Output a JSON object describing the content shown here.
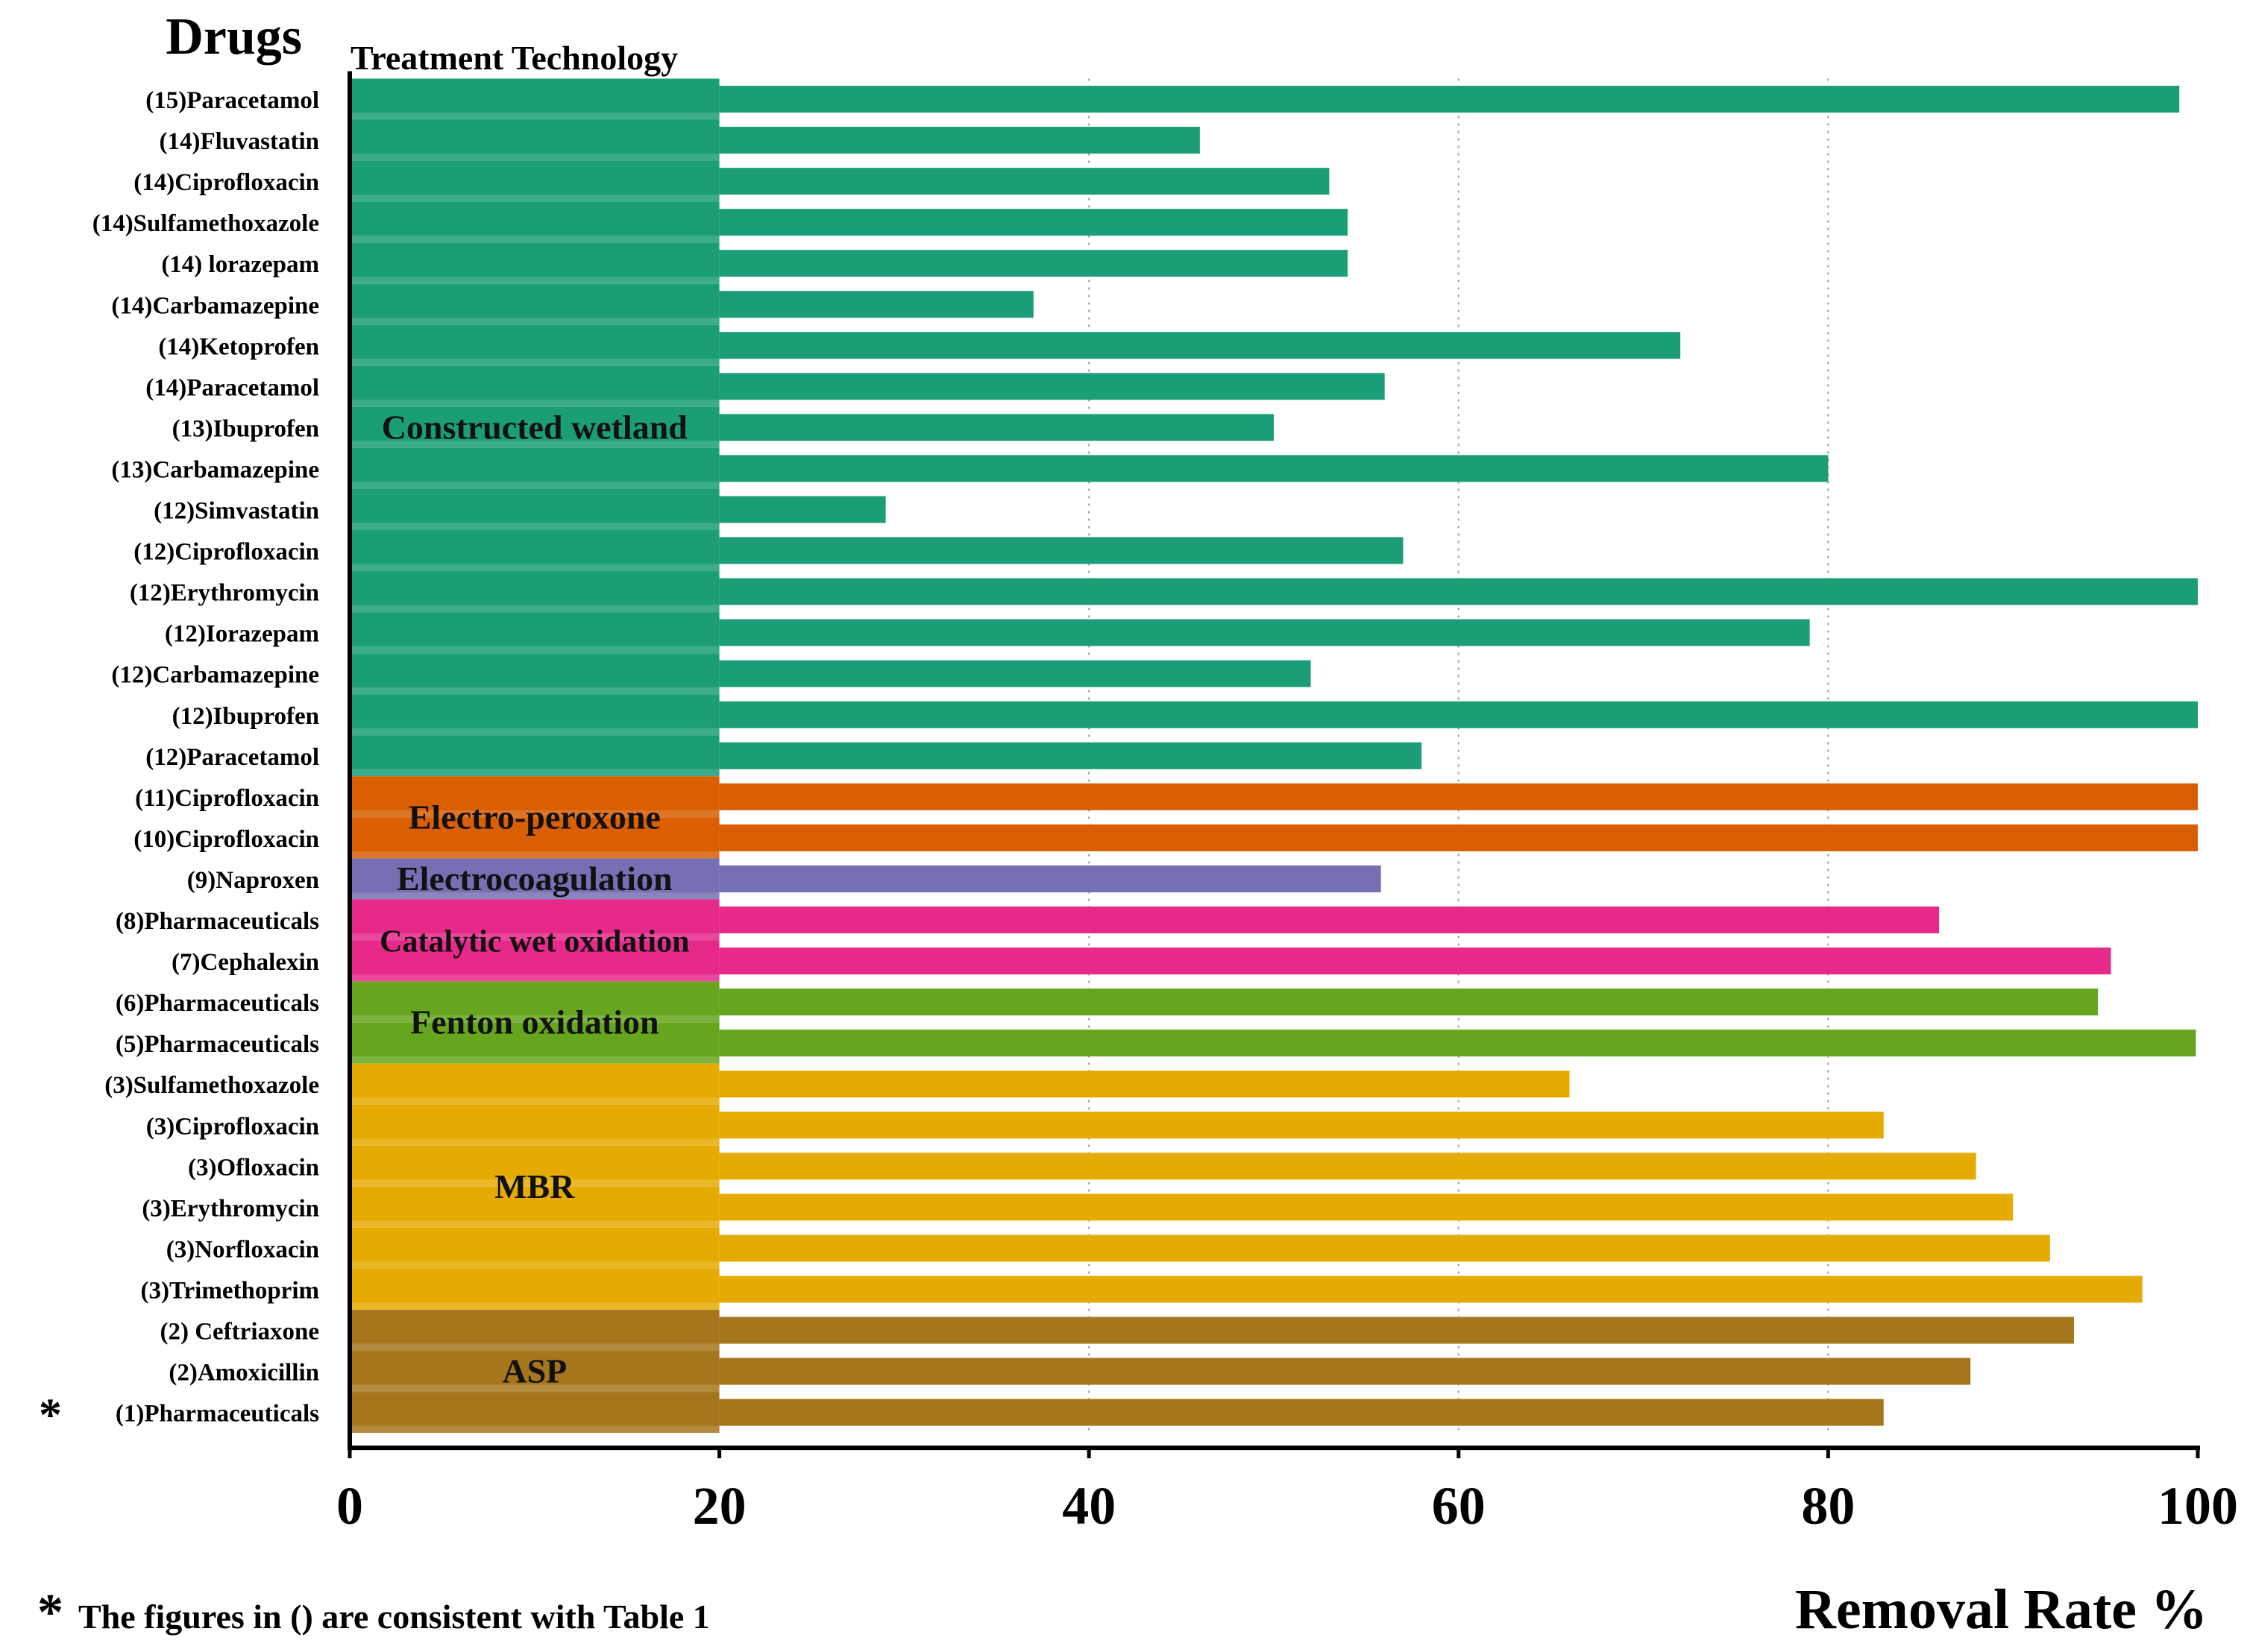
{
  "chart_data": {
    "type": "bar",
    "orientation": "horizontal",
    "title_left": "Drugs",
    "title_top": "Treatment Technology",
    "xlabel": "Removal Rate %",
    "xlim": [
      0,
      100
    ],
    "xticks": [
      0,
      20,
      40,
      60,
      80,
      100
    ],
    "grid": "dotted vertical at 40, 60, 80",
    "footnote_mark": "*",
    "footnote": "The figures in () are consistent with Table 1",
    "groups": [
      {
        "name": "Constructed wetland",
        "color": "#1b9e77",
        "items": [
          {
            "label": "(15)Paracetamol",
            "value": 99
          },
          {
            "label": "(14)Fluvastatin",
            "value": 46
          },
          {
            "label": "(14)Ciprofloxacin",
            "value": 53
          },
          {
            "label": "(14)Sulfamethoxazole",
            "value": 54
          },
          {
            "label": "(14) lorazepam",
            "value": 54
          },
          {
            "label": "(14)Carbamazepine",
            "value": 37
          },
          {
            "label": "(14)Ketoprofen",
            "value": 72
          },
          {
            "label": "(14)Paracetamol",
            "value": 56
          },
          {
            "label": "(13)Ibuprofen",
            "value": 50
          },
          {
            "label": "(13)Carbamazepine",
            "value": 80
          },
          {
            "label": "(12)Simvastatin",
            "value": 29
          },
          {
            "label": "(12)Ciprofloxacin",
            "value": 57
          },
          {
            "label": "(12)Erythromycin",
            "value": 100
          },
          {
            "label": "(12)Iorazepam",
            "value": 79
          },
          {
            "label": "(12)Carbamazepine",
            "value": 52
          },
          {
            "label": "(12)Ibuprofen",
            "value": 100
          },
          {
            "label": "(12)Paracetamol",
            "value": 58
          }
        ]
      },
      {
        "name": "Electro-peroxone",
        "color": "#d95f02",
        "items": [
          {
            "label": "(11)Ciprofloxacin",
            "value": 100
          },
          {
            "label": "(10)Ciprofloxacin",
            "value": 100
          }
        ]
      },
      {
        "name": "Electrocoagulation",
        "color": "#7570b3",
        "items": [
          {
            "label": "(9)Naproxen",
            "value": 55.8
          }
        ]
      },
      {
        "name": "Catalytic wet oxidation",
        "color": "#e7298a",
        "items": [
          {
            "label": "(8)Pharmaceuticals",
            "value": 86
          },
          {
            "label": "(7)Cephalexin",
            "value": 95.3
          }
        ]
      },
      {
        "name": "Fenton oxidation",
        "color": "#66a61e",
        "items": [
          {
            "label": "(6)Pharmaceuticals",
            "value": 94.6
          },
          {
            "label": "(5)Pharmaceuticals",
            "value": 99.9
          }
        ]
      },
      {
        "name": "MBR",
        "color": "#e6ab02",
        "items": [
          {
            "label": "(3)Sulfamethoxazole",
            "value": 66
          },
          {
            "label": "(3)Ciprofloxacin",
            "value": 83
          },
          {
            "label": "(3)Ofloxacin",
            "value": 88
          },
          {
            "label": "(3)Erythromycin",
            "value": 90
          },
          {
            "label": "(3)Norfloxacin",
            "value": 92
          },
          {
            "label": "(3)Trimethoprim",
            "value": 97
          }
        ]
      },
      {
        "name": "ASP",
        "color": "#a6761d",
        "items": [
          {
            "label": "(2) Ceftriaxone",
            "value": 93.3
          },
          {
            "label": "(2)Amoxicillin",
            "value": 87.7
          },
          {
            "label": "(1)Pharmaceuticals",
            "value": 83,
            "marked": true
          }
        ]
      }
    ]
  }
}
